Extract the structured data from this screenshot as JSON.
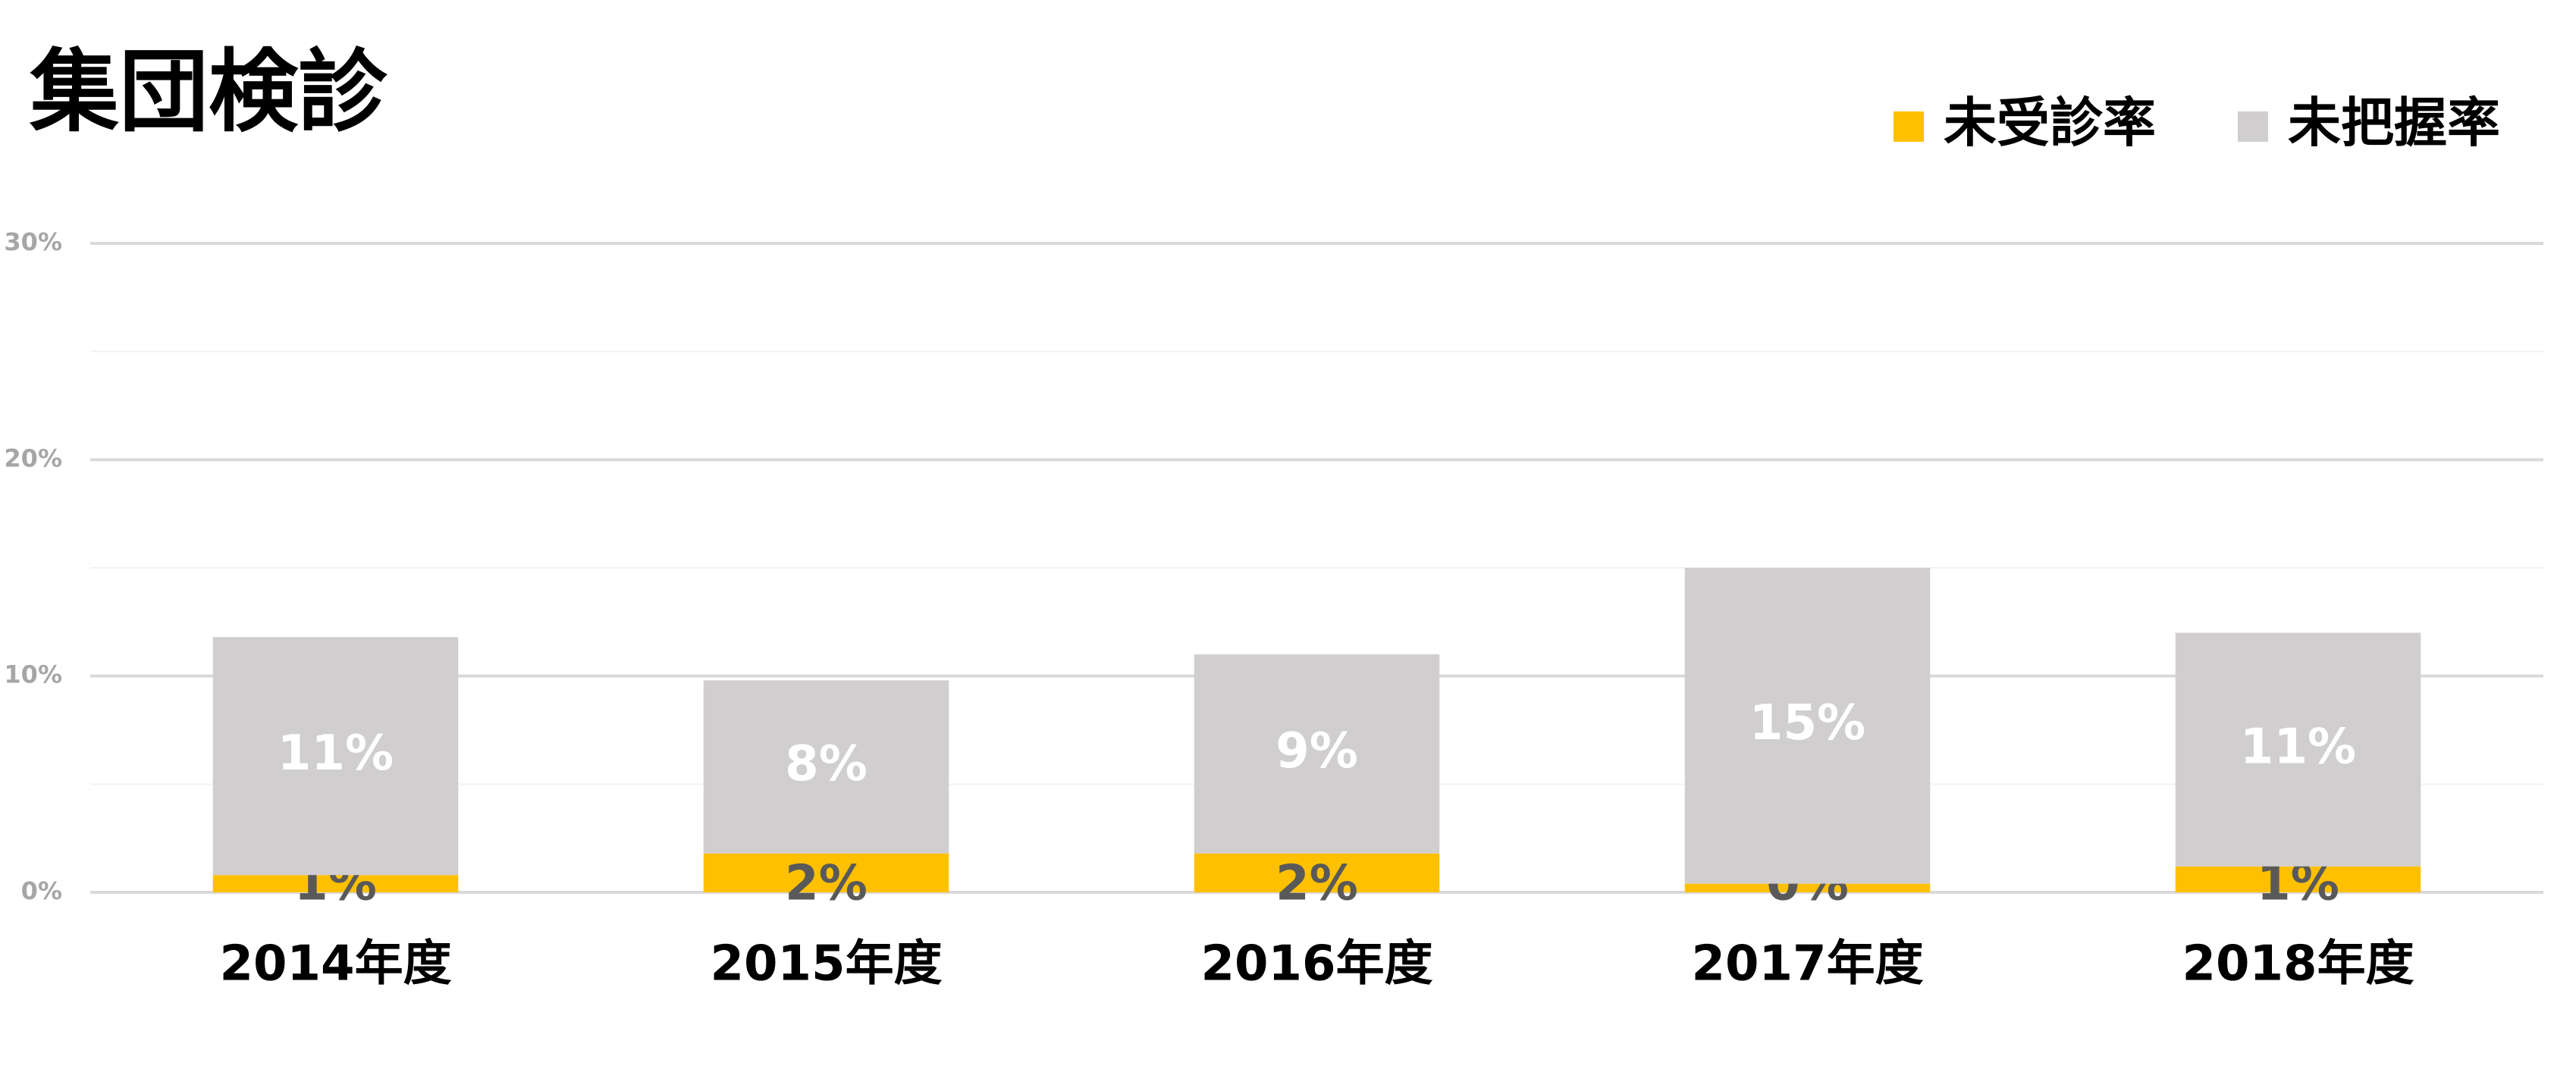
{
  "chart_data": {
    "type": "stacked-bar",
    "title": "集団検診",
    "categories": [
      "2014年度",
      "2015年度",
      "2016年度",
      "2017年度",
      "2018年度"
    ],
    "series": [
      {
        "name": "未受診率",
        "color": "#ffc000",
        "values": [
          0.8,
          1.8,
          1.8,
          0.4,
          1.2
        ],
        "value_labels": [
          "1%",
          "2%",
          "2%",
          "0%",
          "1%"
        ],
        "label_color": "#595959"
      },
      {
        "name": "未把握率",
        "color": "#d0cece",
        "values": [
          11.0,
          8.0,
          9.2,
          14.6,
          10.8
        ],
        "value_labels": [
          "11%",
          "8%",
          "9%",
          "15%",
          "11%"
        ],
        "label_color": "#ffffff"
      }
    ],
    "ylim": [
      0,
      30
    ],
    "yticks": [
      {
        "value": 0,
        "label": "0%"
      },
      {
        "value": 10,
        "label": "10%"
      },
      {
        "value": 20,
        "label": "20%"
      },
      {
        "value": 30,
        "label": "30%"
      }
    ],
    "minor_yticks": [
      5,
      15,
      25
    ],
    "grid": true,
    "legend": "top-right"
  }
}
